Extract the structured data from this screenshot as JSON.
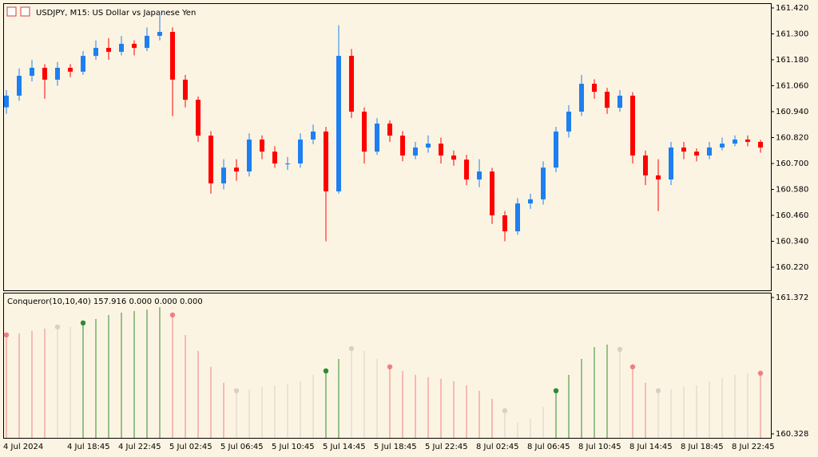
{
  "chart_data": [
    {
      "type": "candlestick",
      "title": "USDJPY, M15:  US Dollar vs Japanese Yen",
      "categories": [
        "4 Jul 2024",
        null,
        null,
        null,
        null,
        "4 Jul 18:45",
        null,
        null,
        null,
        "4 Jul 22:45",
        null,
        null,
        null,
        "5 Jul 02:45",
        null,
        null,
        null,
        "5 Jul 06:45",
        null,
        null,
        null,
        "5 Jul 10:45",
        null,
        null,
        null,
        "5 Jul 14:45",
        null,
        null,
        null,
        "5 Jul 18:45",
        null,
        null,
        null,
        "5 Jul 22:45",
        null,
        null,
        null,
        "8 Jul 02:45",
        null,
        null,
        null,
        "8 Jul 06:45",
        null,
        null,
        null,
        "8 Jul 10:45",
        null,
        null,
        null,
        "8 Jul 14:45",
        null,
        null,
        null,
        "8 Jul 18:45",
        null,
        null,
        null,
        "8 Jul 22:45",
        null,
        null
      ],
      "open": [
        160.96,
        161.014,
        161.106,
        161.143,
        161.088,
        161.143,
        161.125,
        161.198,
        161.235,
        161.217,
        161.254,
        161.235,
        161.291,
        161.309,
        161.088,
        160.995,
        160.829,
        160.608,
        160.681,
        160.663,
        160.811,
        160.755,
        160.7,
        160.7,
        160.811,
        160.848,
        160.571,
        161.198,
        160.94,
        160.755,
        160.885,
        160.829,
        160.737,
        160.774,
        160.792,
        160.737,
        160.718,
        160.626,
        160.663,
        160.46,
        160.386,
        160.515,
        160.534,
        160.681,
        160.848,
        160.94,
        161.069,
        161.032,
        160.958,
        161.014,
        160.737,
        160.645,
        160.626,
        160.774,
        160.755,
        160.737,
        160.774,
        160.792,
        160.811,
        160.8
      ],
      "high": [
        161.04,
        161.14,
        161.18,
        161.16,
        161.17,
        161.16,
        161.22,
        161.27,
        161.28,
        161.29,
        161.27,
        161.33,
        161.4,
        161.33,
        161.11,
        161.01,
        160.85,
        160.72,
        160.72,
        160.84,
        160.83,
        160.78,
        160.73,
        160.84,
        160.88,
        160.87,
        161.34,
        161.23,
        160.96,
        160.91,
        160.9,
        160.85,
        160.8,
        160.83,
        160.82,
        160.76,
        160.74,
        160.72,
        160.68,
        160.48,
        160.54,
        160.56,
        160.71,
        160.87,
        160.97,
        161.11,
        161.09,
        161.05,
        161.04,
        161.03,
        160.76,
        160.72,
        160.8,
        160.8,
        160.77,
        160.8,
        160.82,
        160.83,
        160.83,
        160.81
      ],
      "low": [
        160.93,
        160.99,
        161.08,
        161.0,
        161.06,
        161.1,
        161.11,
        161.18,
        161.18,
        161.2,
        161.2,
        161.22,
        161.27,
        160.92,
        160.96,
        160.8,
        160.56,
        160.58,
        160.62,
        160.64,
        160.72,
        160.68,
        160.67,
        160.68,
        160.79,
        160.34,
        160.56,
        160.91,
        160.7,
        160.74,
        160.8,
        160.71,
        160.72,
        160.75,
        160.7,
        160.69,
        160.6,
        160.59,
        160.42,
        160.34,
        160.37,
        160.49,
        160.51,
        160.66,
        160.82,
        160.92,
        161.0,
        160.93,
        160.94,
        160.7,
        160.6,
        160.48,
        160.6,
        160.72,
        160.71,
        160.72,
        160.76,
        160.78,
        160.78,
        160.75
      ],
      "close": [
        161.014,
        161.106,
        161.143,
        161.088,
        161.143,
        161.125,
        161.198,
        161.235,
        161.217,
        161.254,
        161.235,
        161.291,
        161.309,
        161.088,
        160.995,
        160.829,
        160.608,
        160.681,
        160.663,
        160.811,
        160.755,
        160.7,
        160.7,
        160.811,
        160.848,
        160.571,
        161.198,
        160.94,
        160.755,
        160.885,
        160.829,
        160.737,
        160.774,
        160.792,
        160.737,
        160.718,
        160.626,
        160.663,
        160.46,
        160.386,
        160.515,
        160.534,
        160.681,
        160.848,
        160.94,
        161.069,
        161.032,
        160.958,
        161.014,
        160.737,
        160.645,
        160.626,
        160.774,
        160.755,
        160.737,
        160.774,
        160.792,
        160.811,
        160.8,
        160.774
      ],
      "up_color": "#1e7ff0",
      "down_color": "#ff0000",
      "ylim": [
        160.113,
        161.442
      ],
      "yticks": [
        {
          "value": 161.42,
          "label": "161.420"
        },
        {
          "value": 161.3,
          "label": "161.300"
        },
        {
          "value": 161.18,
          "label": "161.180"
        },
        {
          "value": 161.06,
          "label": "161.060"
        },
        {
          "value": 160.94,
          "label": "160.940"
        },
        {
          "value": 160.82,
          "label": "160.820"
        },
        {
          "value": 160.7,
          "label": "160.700"
        },
        {
          "value": 160.58,
          "label": "160.580"
        },
        {
          "value": 160.46,
          "label": "160.460"
        },
        {
          "value": 160.34,
          "label": "160.340"
        },
        {
          "value": 160.22,
          "label": "160.220"
        }
      ]
    },
    {
      "type": "indicator",
      "title": "Conqueror(10,10,40) 157.916 0.000 0.000 0.000",
      "values": [
        161.085,
        161.097,
        161.116,
        161.134,
        161.146,
        161.146,
        161.177,
        161.207,
        161.238,
        161.256,
        161.268,
        161.28,
        161.299,
        161.238,
        161.085,
        160.963,
        160.841,
        160.719,
        160.658,
        160.67,
        160.688,
        160.7,
        160.707,
        160.731,
        160.78,
        160.81,
        160.902,
        160.981,
        160.963,
        160.902,
        160.841,
        160.81,
        160.78,
        160.761,
        160.749,
        160.731,
        160.7,
        160.658,
        160.597,
        160.505,
        160.414,
        160.444,
        160.536,
        160.658,
        160.78,
        160.902,
        160.993,
        161.012,
        160.975,
        160.841,
        160.719,
        160.658,
        160.67,
        160.688,
        160.7,
        160.731,
        160.755,
        160.78,
        160.792,
        160.792
      ],
      "colors": [
        "#f08080",
        "#f08080",
        "#f08080",
        "#f08080",
        "#d8d0c4",
        "#d8d0c4",
        "#2e8b2e",
        "#2e8b2e",
        "#2e8b2e",
        "#2e8b2e",
        "#2e8b2e",
        "#2e8b2e",
        "#2e8b2e",
        "#f08080",
        "#f08080",
        "#f08080",
        "#f08080",
        "#f08080",
        "#d8d0c4",
        "#d8d0c4",
        "#d8d0c4",
        "#d8d0c4",
        "#d8d0c4",
        "#d8d0c4",
        "#d8d0c4",
        "#2e8b2e",
        "#2e8b2e",
        "#d8d0c4",
        "#d8d0c4",
        "#d8d0c4",
        "#f08080",
        "#f08080",
        "#f08080",
        "#f08080",
        "#f08080",
        "#f08080",
        "#f08080",
        "#f08080",
        "#f08080",
        "#d8d0c4",
        "#d8d0c4",
        "#d8d0c4",
        "#d8d0c4",
        "#2e8b2e",
        "#2e8b2e",
        "#2e8b2e",
        "#2e8b2e",
        "#2e8b2e",
        "#d8d0c4",
        "#f08080",
        "#f08080",
        "#d8d0c4",
        "#d8d0c4",
        "#d8d0c4",
        "#d8d0c4",
        "#d8d0c4",
        "#d8d0c4",
        "#d8d0c4",
        "#d8d0c4",
        "#f08080"
      ],
      "ylim": [
        160.328,
        161.372
      ],
      "yticks": [
        161.372,
        160.328
      ]
    }
  ]
}
